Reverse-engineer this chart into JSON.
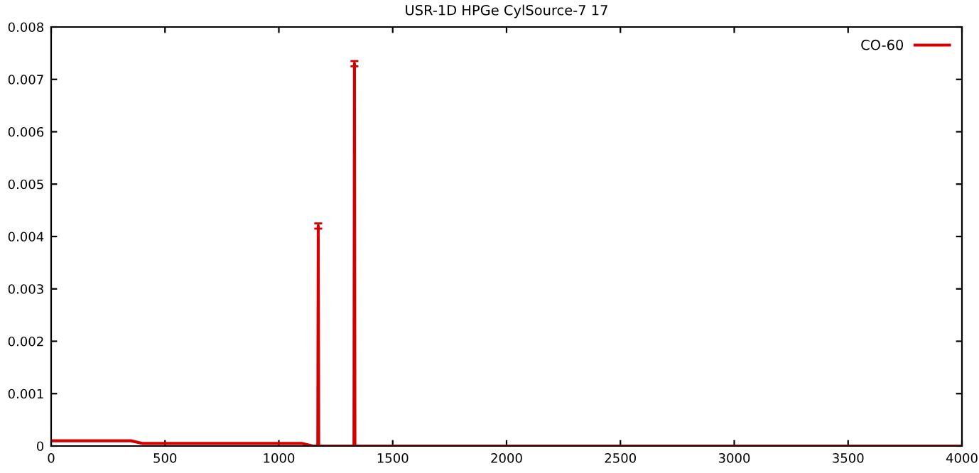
{
  "chart_data": {
    "type": "line",
    "title": "USR-1D HPGe CylSource-7 17",
    "x": [
      0,
      50,
      100,
      150,
      200,
      250,
      300,
      350,
      400,
      450,
      500,
      550,
      600,
      650,
      700,
      750,
      800,
      850,
      900,
      950,
      1000,
      1050,
      1100,
      1150,
      1171,
      1173,
      1175,
      1200,
      1250,
      1300,
      1330,
      1332,
      1334,
      1400,
      1600,
      1800,
      2000,
      2200,
      2400,
      2600,
      2800,
      3000,
      3200,
      3400,
      3600,
      3800,
      4000
    ],
    "series": [
      {
        "name": "CO-60",
        "color": "#d40000",
        "values": [
          0.0001,
          0.0001,
          0.0001,
          0.0001,
          0.0001,
          0.0001,
          0.0001,
          0.0001,
          5e-05,
          5e-05,
          5e-05,
          5e-05,
          5e-05,
          5e-05,
          5e-05,
          5e-05,
          5e-05,
          5e-05,
          5e-05,
          5e-05,
          5e-05,
          5e-05,
          5e-05,
          0,
          0,
          0.0042,
          0,
          0,
          0,
          0,
          0,
          0.0073,
          0,
          0,
          0,
          0,
          0,
          0,
          0,
          0,
          0,
          0,
          0,
          0,
          0,
          0,
          0
        ],
        "errors": [
          null,
          null,
          null,
          null,
          null,
          null,
          null,
          null,
          null,
          null,
          null,
          null,
          null,
          null,
          null,
          null,
          null,
          null,
          null,
          null,
          null,
          null,
          null,
          null,
          null,
          5e-05,
          null,
          null,
          null,
          null,
          null,
          5e-05,
          null,
          null,
          null,
          null,
          null,
          null,
          null,
          null,
          null,
          null,
          null,
          null,
          null,
          null,
          null
        ]
      }
    ],
    "xlim": [
      0,
      4000
    ],
    "xticks": [
      0,
      500,
      1000,
      1500,
      2000,
      2500,
      3000,
      3500,
      4000
    ],
    "ylim": [
      0,
      0.008
    ],
    "yticks": [
      0,
      0.001,
      0.002,
      0.003,
      0.004,
      0.005,
      0.006,
      0.007,
      0.008
    ],
    "grid": false,
    "legend": "top right"
  }
}
